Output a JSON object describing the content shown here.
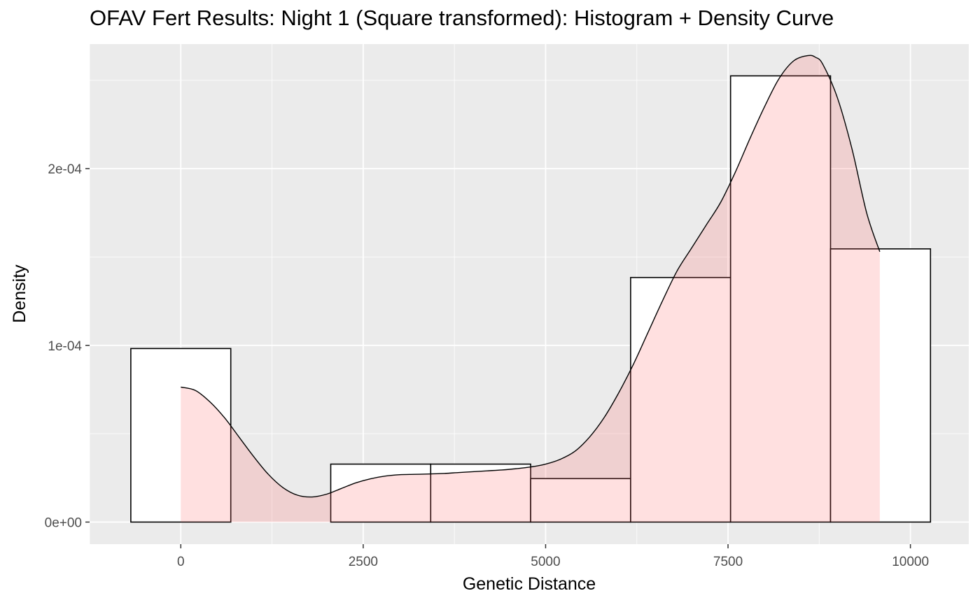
{
  "chart_data": {
    "type": "histogram",
    "title": "OFAV Fert Results: Night 1 (Square transformed): Histogram + Density Curve",
    "xlabel": "Genetic Distance",
    "ylabel": "Density",
    "xlim": [
      -1250,
      10800
    ],
    "ylim": [
      -1.25e-05,
      0.0002705
    ],
    "x_ticks": [
      0,
      2500,
      5000,
      7500,
      10000
    ],
    "x_tick_labels": [
      "0",
      "2500",
      "5000",
      "7500",
      "10000"
    ],
    "y_ticks": [
      0,
      0.0001,
      0.0002
    ],
    "y_tick_labels": [
      "0e+00",
      "1e-04",
      "2e-04"
    ],
    "bins": [
      {
        "x0": -685,
        "x1": 685,
        "density": 9.82e-05
      },
      {
        "x0": 2055,
        "x1": 3425,
        "density": 3.28e-05
      },
      {
        "x0": 3425,
        "x1": 4795,
        "density": 3.28e-05
      },
      {
        "x0": 4795,
        "x1": 6165,
        "density": 2.46e-05
      },
      {
        "x0": 6165,
        "x1": 7535,
        "density": 0.0001384
      },
      {
        "x0": 7535,
        "x1": 8905,
        "density": 0.0002525
      },
      {
        "x0": 8905,
        "x1": 10275,
        "density": 0.0001546
      }
    ],
    "density_curve": {
      "x": [
        0,
        200,
        400,
        600,
        800,
        1000,
        1200,
        1400,
        1600,
        1800,
        2000,
        2200,
        2400,
        2600,
        2800,
        3000,
        3200,
        3400,
        3600,
        3800,
        4000,
        4200,
        4400,
        4600,
        4800,
        5000,
        5200,
        5400,
        5600,
        5800,
        6000,
        6200,
        6400,
        6600,
        6800,
        7000,
        7200,
        7400,
        7600,
        7800,
        8000,
        8200,
        8400,
        8600,
        8700,
        8800,
        9000,
        9200,
        9400,
        9580
      ],
      "y": [
        7.64e-05,
        7.45e-05,
        6.8e-05,
        5.9e-05,
        4.8e-05,
        3.7e-05,
        2.7e-05,
        1.95e-05,
        1.52e-05,
        1.42e-05,
        1.58e-05,
        1.9e-05,
        2.22e-05,
        2.45e-05,
        2.6e-05,
        2.68e-05,
        2.7e-05,
        2.72e-05,
        2.75e-05,
        2.8e-05,
        2.85e-05,
        2.9e-05,
        2.95e-05,
        3.02e-05,
        3.12e-05,
        3.28e-05,
        3.55e-05,
        4e-05,
        4.8e-05,
        5.9e-05,
        7.3e-05,
        8.9e-05,
        0.000107,
        0.000125,
        0.000142,
        0.000155,
        0.000168,
        0.000181,
        0.000198,
        0.000217,
        0.000235,
        0.000251,
        0.000261,
        0.000264,
        0.000263,
        0.000259,
        0.00024,
        0.000211,
        0.000175,
        0.000153
      ]
    },
    "grid": true,
    "legend": "none",
    "colors": {
      "panel_background": "#EBEBEB",
      "grid_major": "#FFFFFF",
      "bar_fill": "#FFFFFF",
      "bar_outline": "#000000",
      "density_fill": "#FF6666",
      "density_fill_alpha": 0.2,
      "density_line": "#000000"
    }
  }
}
